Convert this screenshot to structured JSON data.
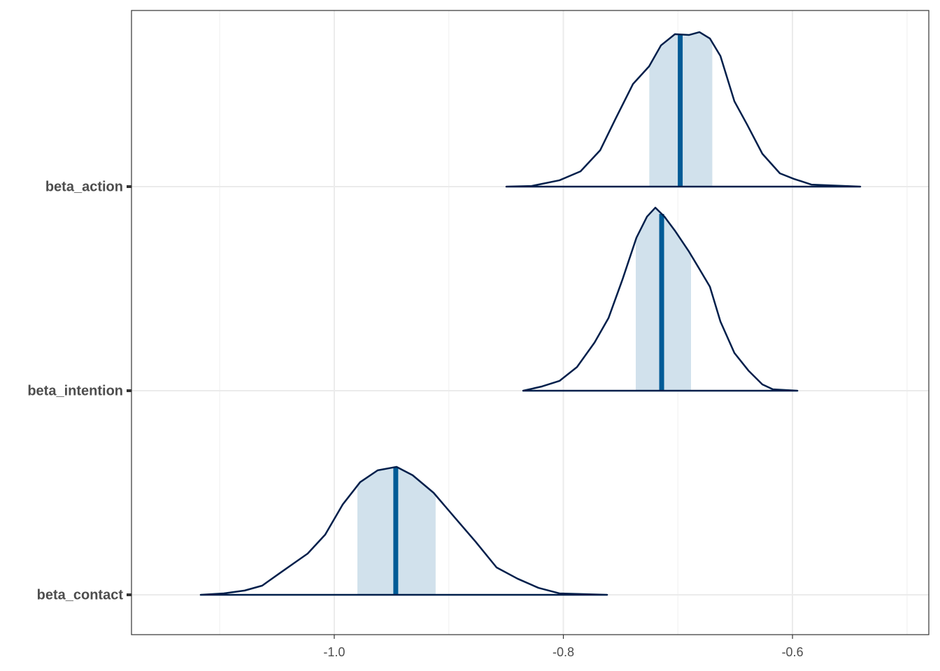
{
  "chart_data": {
    "type": "areas",
    "series": [
      {
        "name": "beta_action",
        "x": [
          -0.8498,
          -0.8278,
          -0.8034,
          -0.785,
          -0.7679,
          -0.7545,
          -0.7392,
          -0.7252,
          -0.7148,
          -0.7026,
          -0.6904,
          -0.6812,
          -0.6721,
          -0.6629,
          -0.6507,
          -0.6397,
          -0.6263,
          -0.611,
          -0.5988,
          -0.5835,
          -0.5408
        ],
        "density": [
          0,
          0.003,
          0.031,
          0.075,
          0.178,
          0.332,
          0.503,
          0.589,
          0.692,
          0.747,
          0.743,
          0.757,
          0.726,
          0.64,
          0.418,
          0.305,
          0.161,
          0.065,
          0.038,
          0.01,
          0
        ],
        "median": -0.698,
        "interval": [
          -0.725,
          -0.67
        ]
      },
      {
        "name": "beta_intention",
        "x": [
          -0.8351,
          -0.8186,
          -0.8034,
          -0.7881,
          -0.7728,
          -0.7606,
          -0.7484,
          -0.7362,
          -0.727,
          -0.7197,
          -0.7118,
          -0.7026,
          -0.6904,
          -0.6812,
          -0.6721,
          -0.6629,
          -0.6507,
          -0.6385,
          -0.6263,
          -0.6171,
          -0.5957
        ],
        "density": [
          0,
          0.021,
          0.048,
          0.116,
          0.236,
          0.356,
          0.545,
          0.75,
          0.853,
          0.897,
          0.853,
          0.784,
          0.682,
          0.596,
          0.51,
          0.339,
          0.185,
          0.099,
          0.031,
          0.007,
          0
        ],
        "median": -0.7142,
        "interval": [
          -0.7368,
          -0.6886
        ]
      },
      {
        "name": "beta_contact",
        "x": [
          -1.1166,
          -1.0965,
          -1.0782,
          -1.0629,
          -1.0476,
          -1.0354,
          -1.0232,
          -1.0079,
          -0.9927,
          -0.9774,
          -0.9621,
          -0.9457,
          -0.9316,
          -0.9133,
          -0.895,
          -0.8766,
          -0.8583,
          -0.84,
          -0.8217,
          -0.8034,
          -0.7618
        ],
        "density": [
          0,
          0.007,
          0.021,
          0.045,
          0.106,
          0.154,
          0.202,
          0.295,
          0.442,
          0.552,
          0.61,
          0.627,
          0.586,
          0.5,
          0.38,
          0.26,
          0.134,
          0.079,
          0.034,
          0.007,
          0
        ],
        "median": -0.9463,
        "interval": [
          -0.9798,
          -0.9115
        ]
      }
    ],
    "xlim": [
      -1.177,
      -0.481
    ],
    "xticks": [
      {
        "value": -1.0,
        "label": "-1.0"
      },
      -0.8,
      -0.6
    ],
    "xminorticks": [
      -1.1,
      -0.9,
      -0.7,
      -0.5
    ],
    "grid": true,
    "line_color": "#011f4b",
    "median_color": "#005b96",
    "interval_color": "#d1e1ec"
  }
}
